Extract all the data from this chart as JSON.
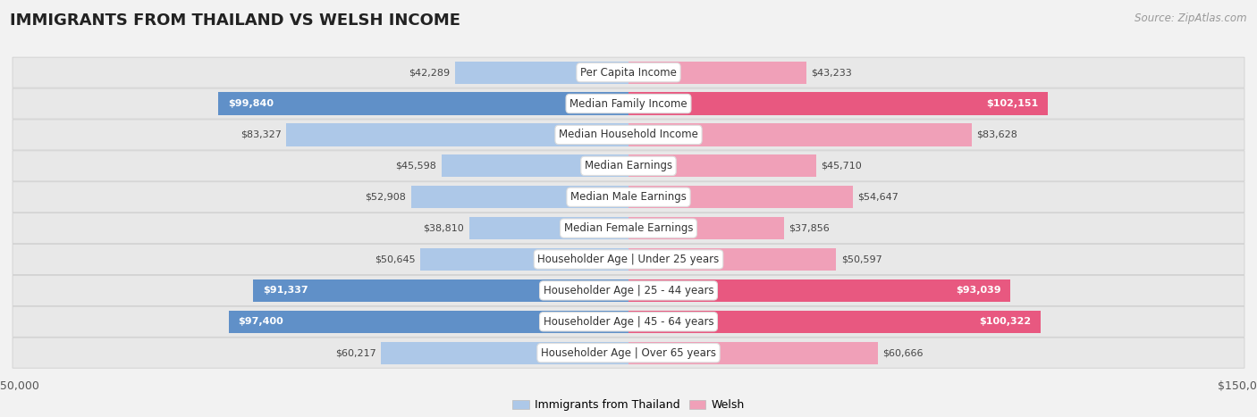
{
  "title": "IMMIGRANTS FROM THAILAND VS WELSH INCOME",
  "source": "Source: ZipAtlas.com",
  "categories": [
    "Per Capita Income",
    "Median Family Income",
    "Median Household Income",
    "Median Earnings",
    "Median Male Earnings",
    "Median Female Earnings",
    "Householder Age | Under 25 years",
    "Householder Age | 25 - 44 years",
    "Householder Age | 45 - 64 years",
    "Householder Age | Over 65 years"
  ],
  "thailand_values": [
    42289,
    99840,
    83327,
    45598,
    52908,
    38810,
    50645,
    91337,
    97400,
    60217
  ],
  "welsh_values": [
    43233,
    102151,
    83628,
    45710,
    54647,
    37856,
    50597,
    93039,
    100322,
    60666
  ],
  "thailand_color_light": "#adc8e8",
  "thailand_color_dark": "#6090c8",
  "welsh_color_light": "#f0a0b8",
  "welsh_color_dark": "#e85880",
  "thailand_label": "Immigrants from Thailand",
  "welsh_label": "Welsh",
  "xlim": 150000,
  "bar_height": 0.72,
  "row_bg_color": "#e8e8e8",
  "row_border_color": "#d0d0d0",
  "fig_bg_color": "#f2f2f2",
  "label_box_color": "#ffffff",
  "title_fontsize": 13,
  "source_fontsize": 8.5,
  "value_fontsize": 8,
  "category_fontsize": 8.5,
  "legend_fontsize": 9,
  "tick_fontsize": 9,
  "inside_threshold_ratio": 0.58,
  "value_inside_color": "#ffffff",
  "value_outside_color": "#444444"
}
